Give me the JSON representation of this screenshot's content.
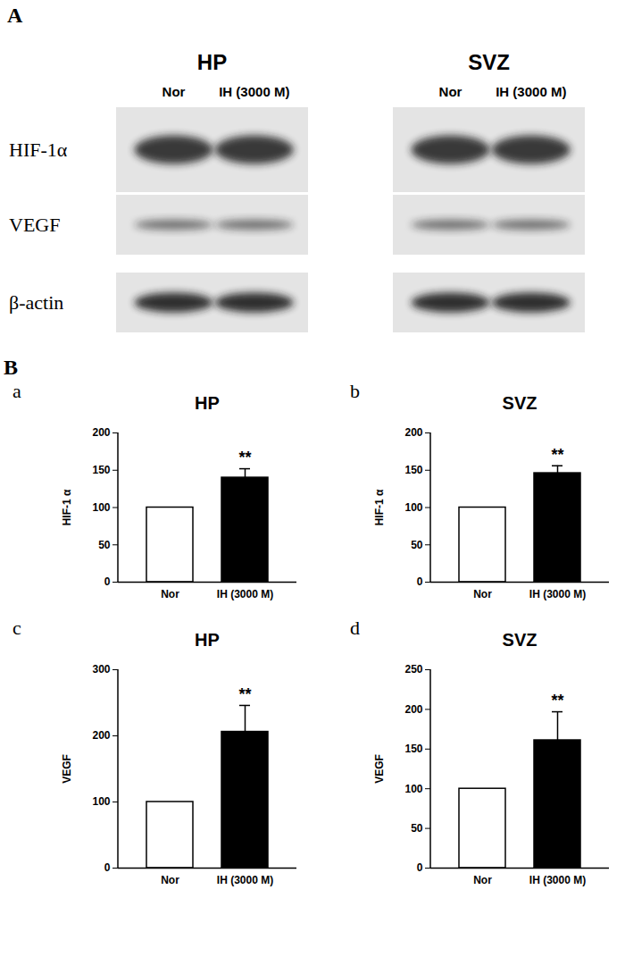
{
  "chart_data": [
    {
      "type": "bar",
      "title": "HP",
      "y_label": "HIF-1 α",
      "categories": [
        "Nor",
        "IH (3000 M)"
      ],
      "values": [
        100,
        140
      ],
      "errors": [
        0,
        12
      ],
      "colors": [
        "#ffffff",
        "#000000"
      ],
      "ylim": [
        0,
        200
      ],
      "yticks": [
        0,
        50,
        100,
        150,
        200
      ],
      "grid": false,
      "annotations": [
        {
          "category": "IH (3000 M)",
          "text": "**"
        }
      ]
    },
    {
      "type": "bar",
      "title": "SVZ",
      "y_label": "HIF-1 α",
      "categories": [
        "Nor",
        "IH (3000 M)"
      ],
      "values": [
        100,
        146
      ],
      "errors": [
        0,
        10
      ],
      "colors": [
        "#ffffff",
        "#000000"
      ],
      "ylim": [
        0,
        200
      ],
      "yticks": [
        0,
        50,
        100,
        150,
        200
      ],
      "grid": false,
      "annotations": [
        {
          "category": "IH (3000 M)",
          "text": "**"
        }
      ]
    },
    {
      "type": "bar",
      "title": "HP",
      "y_label": "VEGF",
      "categories": [
        "Nor",
        "IH (3000 M)"
      ],
      "values": [
        100,
        206
      ],
      "errors": [
        0,
        40
      ],
      "colors": [
        "#ffffff",
        "#000000"
      ],
      "ylim": [
        0,
        300
      ],
      "yticks": [
        0,
        100,
        200,
        300
      ],
      "grid": false,
      "annotations": [
        {
          "category": "IH (3000 M)",
          "text": "**"
        }
      ]
    },
    {
      "type": "bar",
      "title": "SVZ",
      "y_label": "VEGF",
      "categories": [
        "Nor",
        "IH (3000 M)"
      ],
      "values": [
        100,
        161
      ],
      "errors": [
        0,
        36
      ],
      "colors": [
        "#ffffff",
        "#000000"
      ],
      "ylim": [
        0,
        250
      ],
      "yticks": [
        0,
        50,
        100,
        150,
        200,
        250
      ],
      "grid": false,
      "annotations": [
        {
          "category": "IH (3000 M)",
          "text": "**"
        }
      ]
    }
  ],
  "figure": {
    "panel_labels": [
      "A",
      "B"
    ],
    "subpanel_labels": [
      "a",
      "b",
      "c",
      "d"
    ],
    "blot": {
      "regions": [
        "HP",
        "SVZ"
      ],
      "lanes": [
        "Nor",
        "IH (3000 M)"
      ],
      "rows": [
        "HIF-1α",
        "VEGF",
        "β-actin"
      ]
    }
  }
}
